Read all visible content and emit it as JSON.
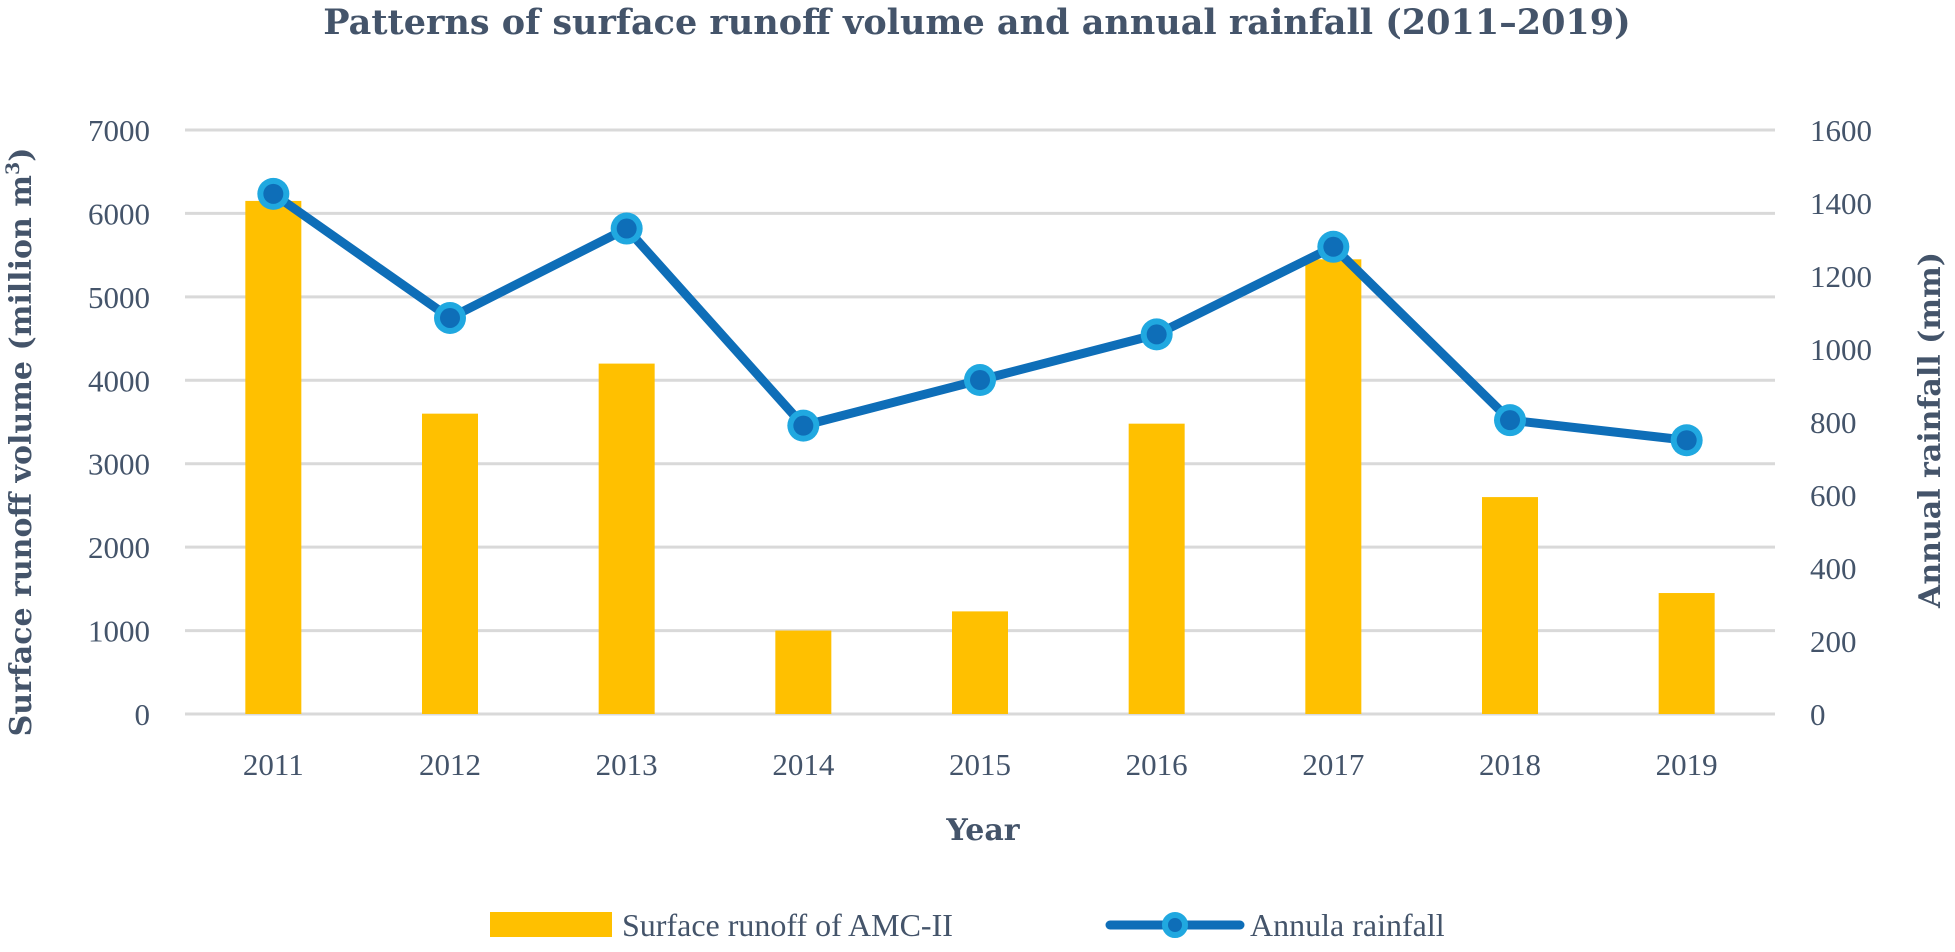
{
  "chart_data": {
    "type": "bar",
    "title": "Patterns of surface runoff volume and annual rainfall (2011–2019)",
    "xlabel": "Year",
    "ylabel": "Surface runoff volume (million m",
    "ylabel_sup": "3",
    "ylabel_end": ")",
    "y2label": "Annual rainfall (mm)",
    "categories": [
      "2011",
      "2012",
      "2013",
      "2014",
      "2015",
      "2016",
      "2017",
      "2018",
      "2019"
    ],
    "ylim": [
      0,
      7000
    ],
    "yticks": [
      0,
      1000,
      2000,
      3000,
      4000,
      5000,
      6000,
      7000
    ],
    "y2lim": [
      0,
      1600
    ],
    "y2ticks": [
      0,
      200,
      400,
      600,
      800,
      1000,
      1200,
      1400,
      1600
    ],
    "grid": true,
    "series": [
      {
        "name": "Surface runoff of AMC-II",
        "kind": "bar",
        "axis": "left",
        "color": "#ffc000",
        "values": [
          6150,
          3600,
          4200,
          1000,
          1230,
          3480,
          5450,
          2600,
          1450
        ]
      },
      {
        "name": "Annula rainfall",
        "kind": "line",
        "axis": "right",
        "color": "#0e6eb8",
        "marker_color": "#20a8e0",
        "values": [
          1425,
          1085,
          1330,
          790,
          915,
          1040,
          1280,
          805,
          750
        ]
      }
    ],
    "legend_position": "bottom"
  }
}
